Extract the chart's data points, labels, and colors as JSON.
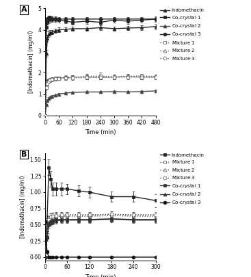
{
  "panel_A": {
    "title": "A",
    "xlabel": "Time (min)",
    "ylabel": "[Indomethacin] (mg/ml)",
    "xlim": [
      0,
      480
    ],
    "ylim": [
      0,
      5
    ],
    "xticks": [
      0,
      60,
      120,
      180,
      240,
      300,
      360,
      420,
      480
    ],
    "yticks": [
      0,
      1,
      2,
      3,
      4,
      5
    ],
    "series": {
      "Indomethacin": {
        "x": [
          0,
          5,
          10,
          15,
          20,
          30,
          45,
          60,
          90,
          120,
          180,
          240,
          300,
          360,
          420,
          480
        ],
        "y": [
          0.0,
          2.9,
          3.6,
          3.8,
          3.85,
          3.9,
          3.95,
          4.0,
          4.02,
          4.05,
          4.05,
          4.1,
          4.05,
          4.08,
          4.1,
          4.15
        ],
        "yerr": [
          0,
          0.15,
          0.15,
          0.15,
          0.12,
          0.1,
          0.1,
          0.1,
          0.1,
          0.1,
          0.1,
          0.1,
          0.1,
          0.1,
          0.1,
          0.12
        ],
        "marker": "^",
        "linestyle": "-",
        "color": "#222222",
        "markersize": 3.5,
        "linewidth": 1.0,
        "markerfacecolor": "#222222"
      },
      "Co-crystal 1": {
        "x": [
          0,
          5,
          10,
          15,
          20,
          30,
          45,
          60,
          90,
          120,
          180,
          240,
          300,
          360,
          420,
          480
        ],
        "y": [
          0.0,
          4.1,
          4.4,
          4.45,
          4.5,
          4.5,
          4.5,
          4.45,
          4.4,
          4.35,
          4.4,
          4.35,
          4.45,
          4.4,
          4.45,
          4.5
        ],
        "yerr": [
          0,
          0.15,
          0.15,
          0.15,
          0.12,
          0.12,
          0.12,
          0.12,
          0.1,
          0.12,
          0.12,
          0.12,
          0.12,
          0.12,
          0.12,
          0.12
        ],
        "marker": "s",
        "linestyle": "-",
        "color": "#222222",
        "markersize": 3.5,
        "linewidth": 1.0,
        "markerfacecolor": "#222222"
      },
      "Co-crystal 2": {
        "x": [
          0,
          5,
          10,
          15,
          20,
          30,
          45,
          60,
          90,
          120,
          180,
          240,
          300,
          360,
          420,
          480
        ],
        "y": [
          0.0,
          0.5,
          0.7,
          0.8,
          0.85,
          0.9,
          0.95,
          1.0,
          1.05,
          1.08,
          1.1,
          1.1,
          1.12,
          1.1,
          1.12,
          1.15
        ],
        "yerr": [
          0,
          0.05,
          0.05,
          0.05,
          0.05,
          0.05,
          0.05,
          0.05,
          0.05,
          0.05,
          0.05,
          0.05,
          0.05,
          0.05,
          0.05,
          0.05
        ],
        "marker": "^",
        "linestyle": "-",
        "color": "#444444",
        "markersize": 3.5,
        "linewidth": 1.0,
        "markerfacecolor": "#444444"
      },
      "Co-crystal 3": {
        "x": [
          0,
          5,
          10,
          15,
          20,
          30,
          45,
          60,
          90,
          120,
          180,
          240,
          300,
          360,
          420,
          480
        ],
        "y": [
          0.0,
          4.3,
          4.5,
          4.55,
          4.55,
          4.5,
          4.5,
          4.5,
          4.5,
          4.5,
          4.5,
          4.5,
          4.5,
          4.5,
          4.5,
          4.5
        ],
        "yerr": [
          0,
          0.15,
          0.1,
          0.1,
          0.1,
          0.1,
          0.1,
          0.1,
          0.1,
          0.1,
          0.1,
          0.1,
          0.1,
          0.1,
          0.1,
          0.1
        ],
        "marker": "o",
        "linestyle": "-",
        "color": "#222222",
        "markersize": 3.5,
        "linewidth": 1.0,
        "markerfacecolor": "#222222"
      },
      "Mixture 1": {
        "x": [
          0,
          5,
          10,
          15,
          20,
          30,
          45,
          60,
          90,
          120,
          180,
          240,
          300,
          360,
          420,
          480
        ],
        "y": [
          0.0,
          1.35,
          1.55,
          1.6,
          1.65,
          1.7,
          1.73,
          1.75,
          1.78,
          1.78,
          1.82,
          1.85,
          1.8,
          1.83,
          1.85,
          1.82
        ],
        "yerr": [
          0,
          0.1,
          0.1,
          0.08,
          0.08,
          0.08,
          0.08,
          0.08,
          0.1,
          0.1,
          0.12,
          0.15,
          0.1,
          0.1,
          0.1,
          0.1
        ],
        "marker": "s",
        "linestyle": ":",
        "color": "#555555",
        "markersize": 3.5,
        "linewidth": 1.0,
        "markerfacecolor": "white"
      },
      "Mixture 2": {
        "x": [
          0,
          5,
          10,
          15,
          20,
          30,
          45,
          60,
          90,
          120,
          180,
          240,
          300,
          360,
          420,
          480
        ],
        "y": [
          0.0,
          1.4,
          1.6,
          1.65,
          1.68,
          1.72,
          1.75,
          1.75,
          1.78,
          1.8,
          1.8,
          1.78,
          1.8,
          1.82,
          1.8,
          1.8
        ],
        "yerr": [
          0,
          0.1,
          0.1,
          0.08,
          0.08,
          0.08,
          0.08,
          0.08,
          0.08,
          0.08,
          0.1,
          0.1,
          0.1,
          0.1,
          0.1,
          0.1
        ],
        "marker": "^",
        "linestyle": ":",
        "color": "#555555",
        "markersize": 3.5,
        "linewidth": 1.0,
        "markerfacecolor": "white"
      },
      "Mixture 3": {
        "x": [
          0,
          5,
          10,
          15,
          20,
          30,
          45,
          60,
          90,
          120,
          180,
          240,
          300,
          360,
          420,
          480
        ],
        "y": [
          0.0,
          1.3,
          1.5,
          1.6,
          1.65,
          1.68,
          1.72,
          1.73,
          1.75,
          1.75,
          1.78,
          1.78,
          1.78,
          1.8,
          1.78,
          1.78
        ],
        "yerr": [
          0,
          0.1,
          0.1,
          0.08,
          0.08,
          0.08,
          0.08,
          0.08,
          0.08,
          0.08,
          0.1,
          0.1,
          0.1,
          0.1,
          0.1,
          0.1
        ],
        "marker": "o",
        "linestyle": ":",
        "color": "#555555",
        "markersize": 3.5,
        "linewidth": 1.0,
        "markerfacecolor": "white"
      }
    },
    "legend_order": [
      "Indomethacin",
      "Co-crystal 1",
      "Co-crystal 2",
      "Co-crystal 3",
      "Mixture 1",
      "Mixture 2",
      "Mixture 3"
    ]
  },
  "panel_B": {
    "title": "B",
    "xlabel": "Time (min)",
    "ylabel": "[Indomethacin] (mg/ml)",
    "xlim": [
      0,
      300
    ],
    "ylim": [
      -0.05,
      1.6
    ],
    "xticks": [
      0,
      60,
      120,
      180,
      240,
      300
    ],
    "yticks": [
      0.0,
      0.25,
      0.5,
      0.75,
      1.0,
      1.25,
      1.5
    ],
    "series": {
      "Indomethacin": {
        "x": [
          0,
          5,
          10,
          15,
          20,
          30,
          45,
          60,
          90,
          120,
          180,
          240,
          300
        ],
        "y": [
          0.0,
          0.55,
          1.38,
          1.2,
          1.05,
          1.05,
          1.05,
          1.05,
          1.02,
          1.0,
          0.93,
          0.93,
          0.87
        ],
        "yerr": [
          0,
          0.1,
          0.12,
          0.12,
          0.1,
          0.1,
          0.1,
          0.08,
          0.08,
          0.08,
          0.08,
          0.08,
          0.1
        ],
        "marker": "s",
        "linestyle": "-",
        "color": "#222222",
        "markersize": 3.5,
        "linewidth": 1.0,
        "markerfacecolor": "#222222"
      },
      "Mixture 1": {
        "x": [
          0,
          5,
          10,
          15,
          20,
          30,
          45,
          60,
          90,
          120,
          180,
          240,
          300
        ],
        "y": [
          0.0,
          0.35,
          0.55,
          0.58,
          0.6,
          0.62,
          0.63,
          0.63,
          0.63,
          0.63,
          0.64,
          0.63,
          0.63
        ],
        "yerr": [
          0,
          0.05,
          0.05,
          0.05,
          0.05,
          0.05,
          0.04,
          0.04,
          0.04,
          0.04,
          0.04,
          0.04,
          0.04
        ],
        "marker": "s",
        "linestyle": ":",
        "color": "#555555",
        "markersize": 3.5,
        "linewidth": 1.0,
        "markerfacecolor": "white"
      },
      "Mixture 2": {
        "x": [
          0,
          5,
          10,
          15,
          20,
          30,
          45,
          60,
          90,
          120,
          180,
          240,
          300
        ],
        "y": [
          0.0,
          0.35,
          0.58,
          0.62,
          0.63,
          0.64,
          0.65,
          0.65,
          0.65,
          0.65,
          0.66,
          0.65,
          0.65
        ],
        "yerr": [
          0,
          0.05,
          0.05,
          0.05,
          0.05,
          0.05,
          0.04,
          0.04,
          0.04,
          0.04,
          0.04,
          0.04,
          0.04
        ],
        "marker": "^",
        "linestyle": ":",
        "color": "#555555",
        "markersize": 3.5,
        "linewidth": 1.0,
        "markerfacecolor": "white"
      },
      "Mixture 3": {
        "x": [
          0,
          5,
          10,
          15,
          20,
          30,
          45,
          60,
          90,
          120,
          180,
          240,
          300
        ],
        "y": [
          0.0,
          0.35,
          0.58,
          0.62,
          0.63,
          0.64,
          0.65,
          0.65,
          0.65,
          0.65,
          0.66,
          0.65,
          0.65
        ],
        "yerr": [
          0,
          0.05,
          0.05,
          0.05,
          0.05,
          0.05,
          0.04,
          0.04,
          0.04,
          0.04,
          0.04,
          0.04,
          0.04
        ],
        "marker": "o",
        "linestyle": ":",
        "color": "#555555",
        "markersize": 3.5,
        "linewidth": 1.0,
        "markerfacecolor": "white"
      },
      "Co-crystal 1": {
        "x": [
          0,
          5,
          10,
          15,
          20,
          30,
          45,
          60,
          90,
          120,
          180,
          240,
          300
        ],
        "y": [
          0.0,
          0.3,
          0.52,
          0.55,
          0.57,
          0.58,
          0.58,
          0.58,
          0.58,
          0.58,
          0.59,
          0.58,
          0.58
        ],
        "yerr": [
          0,
          0.05,
          0.05,
          0.05,
          0.05,
          0.04,
          0.04,
          0.04,
          0.04,
          0.04,
          0.04,
          0.04,
          0.04
        ],
        "marker": "s",
        "linestyle": "-",
        "color": "#333333",
        "markersize": 3.5,
        "linewidth": 1.0,
        "markerfacecolor": "#333333"
      },
      "Co-crystal 2": {
        "x": [
          0,
          5,
          10,
          15,
          20,
          30,
          45,
          60,
          90,
          120,
          180,
          240,
          300
        ],
        "y": [
          0.0,
          0.3,
          0.5,
          0.53,
          0.55,
          0.56,
          0.57,
          0.57,
          0.57,
          0.57,
          0.58,
          0.57,
          0.57
        ],
        "yerr": [
          0,
          0.05,
          0.05,
          0.05,
          0.05,
          0.04,
          0.04,
          0.04,
          0.04,
          0.04,
          0.04,
          0.04,
          0.04
        ],
        "marker": "^",
        "linestyle": "-",
        "color": "#333333",
        "markersize": 3.5,
        "linewidth": 1.0,
        "markerfacecolor": "#333333"
      },
      "Co-crystal 3": {
        "x": [
          0,
          5,
          10,
          15,
          20,
          30,
          45,
          60,
          90,
          120,
          180,
          240,
          300
        ],
        "y": [
          0.55,
          0.08,
          0.0,
          0.0,
          0.0,
          0.0,
          0.0,
          0.0,
          0.0,
          0.0,
          0.0,
          0.0,
          0.0
        ],
        "yerr": [
          0.05,
          0.02,
          0,
          0,
          0,
          0,
          0,
          0,
          0,
          0,
          0,
          0,
          0
        ],
        "marker": "o",
        "linestyle": "-",
        "color": "#111111",
        "markersize": 3.5,
        "linewidth": 1.0,
        "markerfacecolor": "#111111"
      }
    },
    "legend_order": [
      "Indomethacin",
      "Mixture 1",
      "Mixture 2",
      "Mixture 3",
      "Co-crystal 1",
      "Co-crystal 2",
      "Co-crystal 3"
    ]
  }
}
